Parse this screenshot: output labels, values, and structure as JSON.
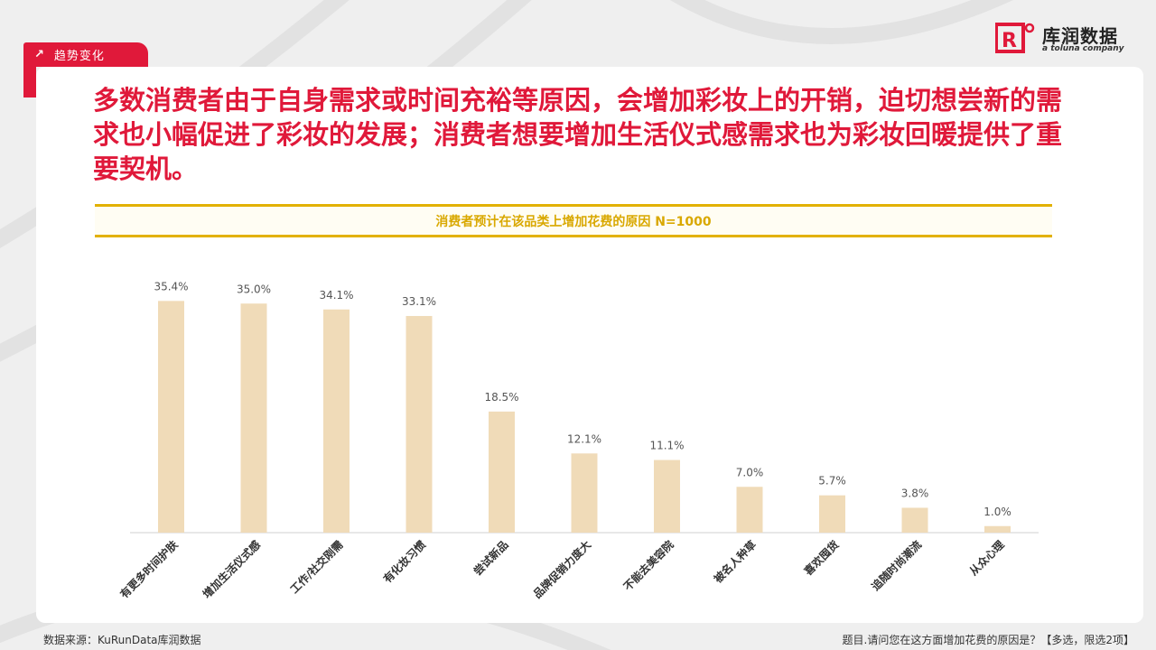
{
  "tag": {
    "label": "趋势变化",
    "icon": "arrow-up-right-icon"
  },
  "logo": {
    "name_cn": "库润数据",
    "tagline": "a toluna company",
    "accent": "#e0193a"
  },
  "headline": "多数消费者由于自身需求或时间充裕等原因，会增加彩妆上的开销，迫切想尝新的需求也小幅促进了彩妆的发展；消费者想要增加生活仪式感需求也为彩妆回暖提供了重要契机。",
  "footer": {
    "source": "数据来源：KuRunData库润数据",
    "question": "题目.请问您在这方面增加花费的原因是？【多选，限选2项】"
  },
  "colors": {
    "bar": "#f0dbb8",
    "accent": "#e0193a",
    "gold": "#e2b100"
  },
  "chart_data": {
    "type": "bar",
    "title": "消费者预计在该品类上增加花费的原因 N=1000",
    "categories": [
      "有更多时间护肤",
      "增加生活仪式感",
      "工作/社交刚需",
      "有化妆习惯",
      "尝试新品",
      "品牌促销力度大",
      "不能去美容院",
      "被名人种草",
      "喜欢囤货",
      "追随时尚潮流",
      "从众心理"
    ],
    "values": [
      35.4,
      35.0,
      34.1,
      33.1,
      18.5,
      12.1,
      11.1,
      7.0,
      5.7,
      3.8,
      1.0
    ],
    "value_labels": [
      "35.4%",
      "35.0%",
      "34.1%",
      "33.1%",
      "18.5%",
      "12.1%",
      "11.1%",
      "7.0%",
      "5.7%",
      "3.8%",
      "1.0%"
    ],
    "ylim": [
      0,
      40
    ],
    "grid": false,
    "legend": "none"
  }
}
